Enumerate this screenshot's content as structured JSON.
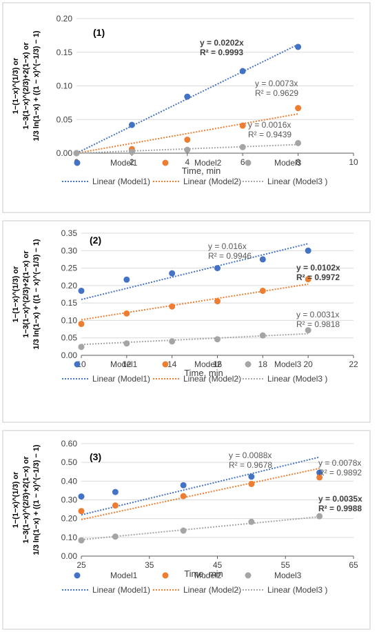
{
  "colors": {
    "model1": "#4472C4",
    "model2": "#ED7D31",
    "model3": "#A5A5A5",
    "grid": "#d9d9d9",
    "axis": "#595959",
    "text": "#404040",
    "frame": "#c8c8c8"
  },
  "chart_data": [
    {
      "type": "scatter",
      "panel_label": "(1)",
      "ylabel_lines": [
        "1−(1−x)^(1/3) or",
        "1−3(1−x)^(2/3)+2(1−x) or",
        "1/3 ln(1−x) + ((1 − x)^(−1/3) − 1)"
      ],
      "xlabel": "Time, min",
      "xlim": [
        0,
        10
      ],
      "ylim": [
        0,
        0.2
      ],
      "x_ticks": [
        "0",
        "2",
        "4",
        "6",
        "8",
        "10"
      ],
      "y_ticks": [
        "0.00",
        "0.05",
        "0.10",
        "0.15",
        "0.20"
      ],
      "grid": "horizontal",
      "series": [
        {
          "name": "Model1",
          "x": [
            0,
            2,
            4,
            6,
            8
          ],
          "y": [
            0,
            0.042,
            0.084,
            0.122,
            0.158
          ],
          "fit_name": "Linear (Model1)",
          "slope": 0.0202,
          "equation": "y = 0.0202x",
          "r2": "R² = 0.9993",
          "label_bold": true
        },
        {
          "name": "Model2",
          "x": [
            0,
            2,
            4,
            6,
            8
          ],
          "y": [
            0,
            0.006,
            0.02,
            0.041,
            0.067
          ],
          "fit_name": "Linear (Model2)",
          "slope": 0.0073,
          "equation": "y = 0.0073x",
          "r2": "R² = 0.9629",
          "label_bold": false
        },
        {
          "name": "Model3",
          "x": [
            0,
            2,
            4,
            6,
            8
          ],
          "y": [
            0,
            0.002,
            0.005,
            0.009,
            0.015
          ],
          "fit_name": "Linear (Model3 )",
          "slope": 0.0016,
          "equation": "y = 0.0016x",
          "r2": "R² = 0.9439",
          "label_bold": false
        }
      ],
      "legend_placement": "bottom"
    },
    {
      "type": "scatter",
      "panel_label": "(2)",
      "ylabel_lines": [
        "1−(1−x)^(1/3) or",
        "1−3(1−x)^(2/3)+2(1−x) or",
        "1/3 ln(1−x) + ((1 − x)^(−1/3) − 1)"
      ],
      "xlabel": "Time, min",
      "xlim": [
        10,
        22
      ],
      "ylim": [
        0,
        0.35
      ],
      "x_ticks": [
        "10",
        "12",
        "14",
        "16",
        "18",
        "20",
        "22"
      ],
      "y_ticks": [
        "0.00",
        "0.05",
        "0.10",
        "0.15",
        "0.20",
        "0.25",
        "0.30",
        "0.35"
      ],
      "grid": "horizontal",
      "series": [
        {
          "name": "Model1",
          "x": [
            10,
            12,
            14,
            16,
            18,
            20
          ],
          "y": [
            0.185,
            0.217,
            0.235,
            0.25,
            0.275,
            0.3
          ],
          "fit_name": "Linear (Model1)",
          "slope": 0.016,
          "equation": "y = 0.016x",
          "r2": "R² = 0.9946",
          "label_bold": false
        },
        {
          "name": "Model2",
          "x": [
            10,
            12,
            14,
            16,
            18,
            20
          ],
          "y": [
            0.09,
            0.12,
            0.14,
            0.155,
            0.185,
            0.218
          ],
          "fit_name": "Linear (Model2)",
          "slope": 0.0102,
          "equation": "y = 0.0102x",
          "r2": "R² = 0.9972",
          "label_bold": true
        },
        {
          "name": "Model3",
          "x": [
            10,
            12,
            14,
            16,
            18,
            20
          ],
          "y": [
            0.024,
            0.034,
            0.04,
            0.046,
            0.057,
            0.072
          ],
          "fit_name": "Linear (Model3 )",
          "slope": 0.0031,
          "equation": "y = 0.0031x",
          "r2": "R² = 0.9818",
          "label_bold": false
        }
      ],
      "legend_placement": "bottom"
    },
    {
      "type": "scatter",
      "panel_label": "(3)",
      "ylabel_lines": [
        "1−(1−x)^(1/3) or",
        "1−3(1−x)^(2/3)+2(1−x) or",
        "1/3 ln(1−x) + ((1 − x)^(−1/3) − 1)"
      ],
      "xlabel": "Time, min",
      "xlim": [
        25,
        65
      ],
      "ylim": [
        0,
        0.6
      ],
      "x_ticks": [
        "25",
        "35",
        "45",
        "55",
        "65"
      ],
      "y_ticks": [
        "0.00",
        "0.10",
        "0.20",
        "0.30",
        "0.40",
        "0.50",
        "0.60"
      ],
      "grid": "horizontal",
      "series": [
        {
          "name": "Model1",
          "x": [
            25,
            30,
            40,
            50,
            60
          ],
          "y": [
            0.318,
            0.342,
            0.378,
            0.424,
            0.445
          ],
          "fit_name": "Linear (Model1)",
          "slope": 0.0088,
          "equation": "y = 0.0088x",
          "r2": "R² = 0.9678",
          "label_bold": false
        },
        {
          "name": "Model2",
          "x": [
            25,
            30,
            40,
            50,
            60
          ],
          "y": [
            0.24,
            0.27,
            0.32,
            0.385,
            0.42
          ],
          "fit_name": "Linear (Model2)",
          "slope": 0.0078,
          "equation": "y = 0.0078x",
          "r2": "R² = 0.9892",
          "label_bold": false
        },
        {
          "name": "Model3",
          "x": [
            25,
            30,
            40,
            50,
            60
          ],
          "y": [
            0.084,
            0.104,
            0.136,
            0.183,
            0.213
          ],
          "fit_name": "Linear (Model3 )",
          "slope": 0.0035,
          "equation": "y = 0.0035x",
          "r2": "R² = 0.9988",
          "label_bold": true
        }
      ],
      "legend_placement": "bottom"
    }
  ]
}
